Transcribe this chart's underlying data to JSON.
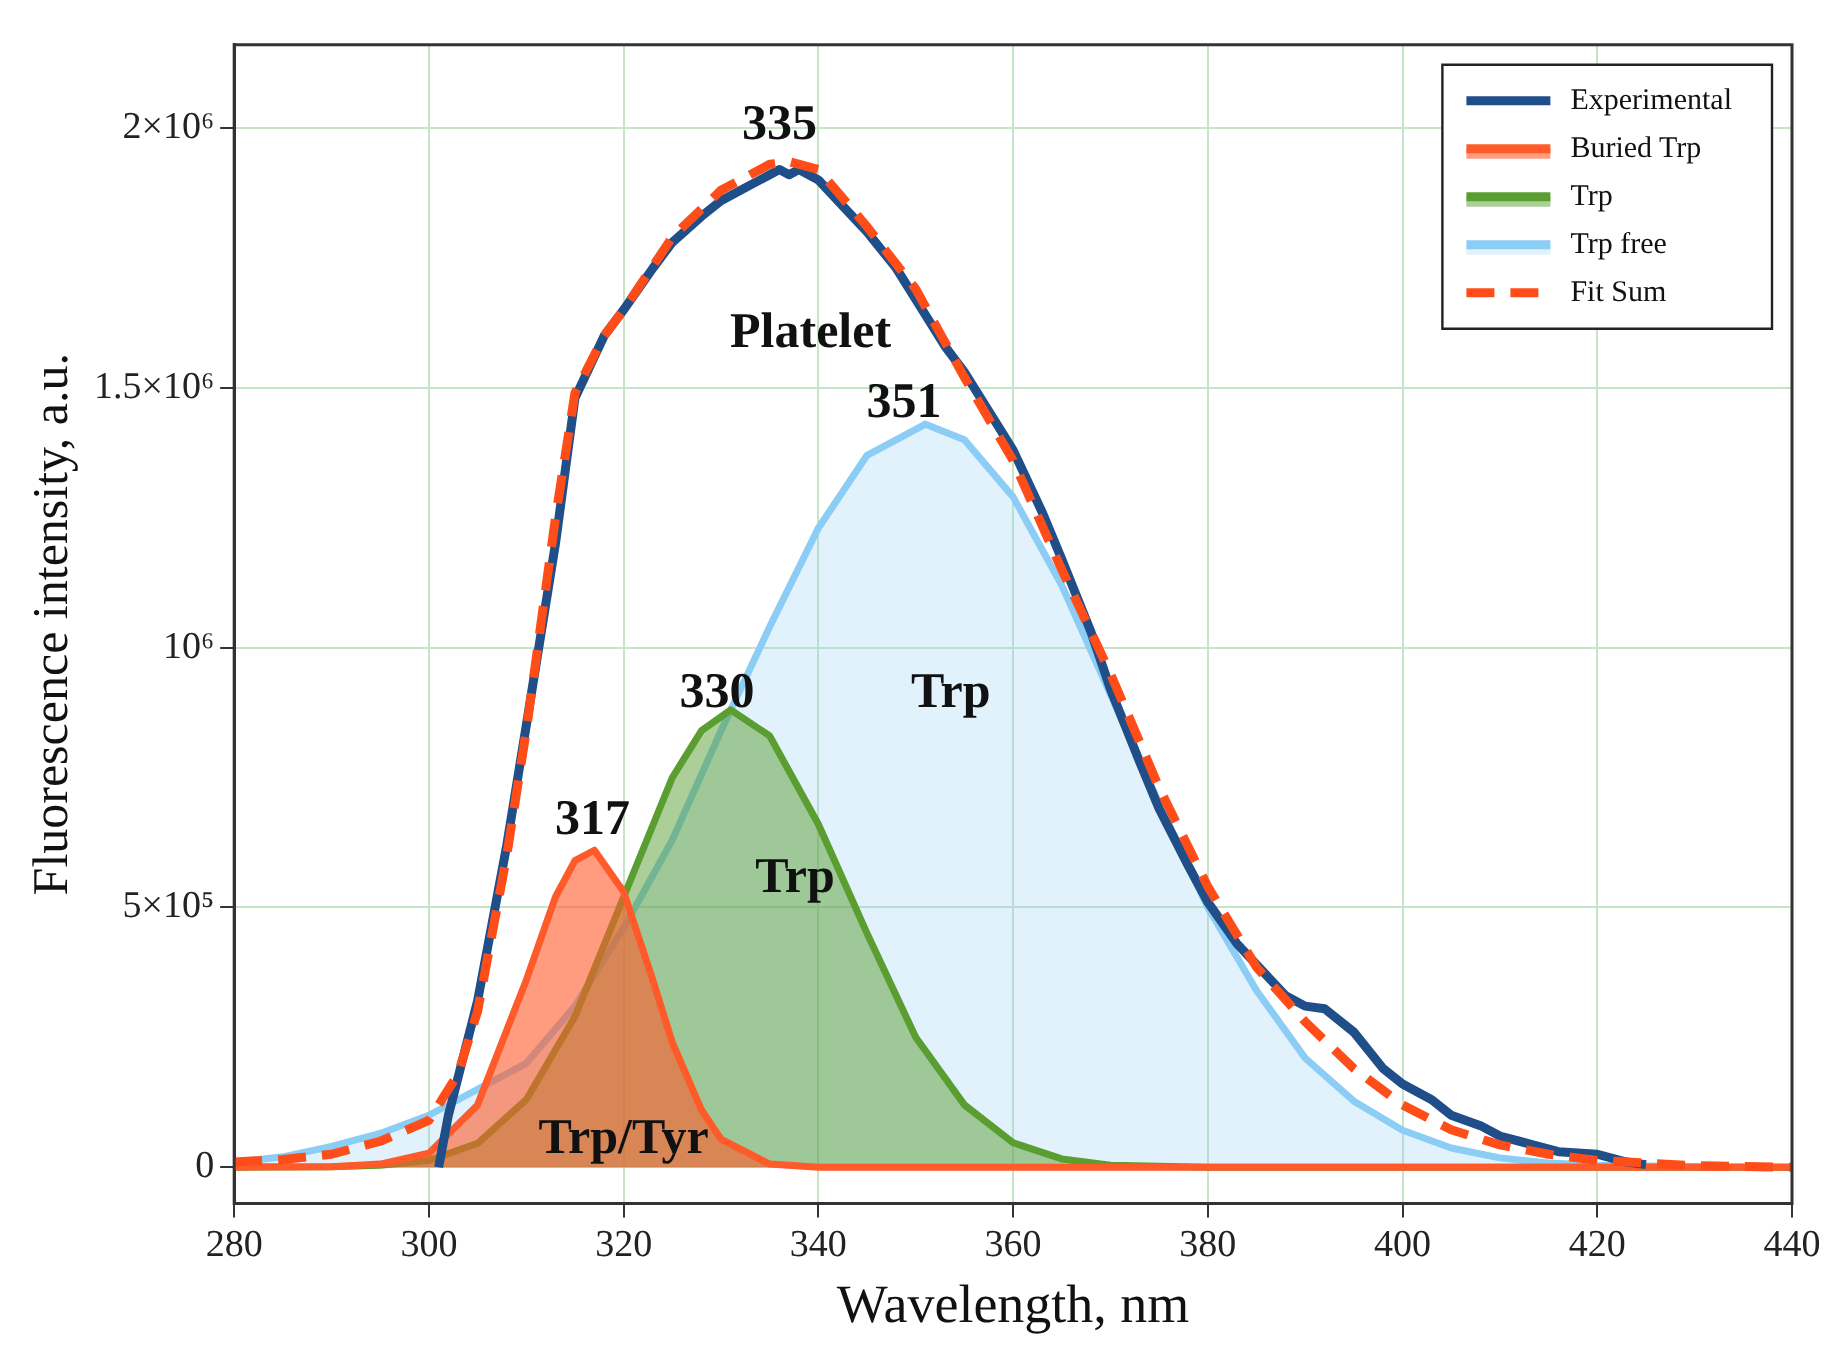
{
  "chart_data": {
    "type": "line",
    "xlabel": "Wavelength, nm",
    "ylabel": "Fluorescence intensity, a.u.",
    "xlim": [
      280,
      440
    ],
    "xticks": [
      280,
      300,
      320,
      340,
      360,
      380,
      400,
      420,
      440
    ],
    "ylim": [
      -70000,
      2160000
    ],
    "yticks": [
      0,
      {
        "value": 500000,
        "label": "5×10⁵"
      },
      {
        "value": 1000000,
        "label": "10⁶"
      },
      {
        "value": 1500000,
        "label": "1.5×10⁶"
      },
      {
        "value": 2000000,
        "label": "2×10⁶"
      }
    ],
    "grid": true,
    "legend": "top right",
    "series": [
      {
        "name": "Experimental",
        "color": "#1f4e89",
        "x": [
          301,
          302,
          305,
          308,
          310,
          313,
          315,
          318,
          320,
          323,
          325,
          328,
          330,
          333,
          335,
          336,
          337,
          338,
          340,
          343,
          345,
          348,
          350,
          353,
          355,
          358,
          360,
          363,
          365,
          368,
          370,
          373,
          375,
          378,
          380,
          383,
          385,
          388,
          390,
          392,
          395,
          398,
          400,
          403,
          405,
          408,
          410,
          413,
          416,
          420,
          423,
          425
        ],
        "values": [
          0,
          100000,
          320000,
          620000,
          850000,
          1200000,
          1480000,
          1600000,
          1650000,
          1730000,
          1780000,
          1830000,
          1860000,
          1890000,
          1910000,
          1920000,
          1910000,
          1920000,
          1900000,
          1840000,
          1800000,
          1730000,
          1670000,
          1580000,
          1530000,
          1440000,
          1380000,
          1260000,
          1170000,
          1030000,
          920000,
          780000,
          690000,
          580000,
          510000,
          430000,
          390000,
          330000,
          310000,
          305000,
          260000,
          190000,
          160000,
          130000,
          100000,
          80000,
          60000,
          45000,
          30000,
          25000,
          10000,
          5000
        ]
      },
      {
        "name": "Buried Trp",
        "type": "area",
        "color": "#ff5a2a",
        "x": [
          280,
          290,
          295,
          300,
          305,
          310,
          313,
          315,
          317,
          320,
          323,
          325,
          328,
          330,
          335,
          340,
          350,
          440
        ],
        "values": [
          0,
          1000,
          6000,
          27000,
          120000,
          360000,
          520000,
          590000,
          610000,
          530000,
          360000,
          240000,
          110000,
          54000,
          6000,
          0,
          0,
          0
        ]
      },
      {
        "name": "Trp",
        "type": "area",
        "color": "#5a9e32",
        "x": [
          280,
          290,
          295,
          300,
          305,
          310,
          315,
          320,
          325,
          328,
          331,
          335,
          340,
          345,
          350,
          355,
          360,
          365,
          370,
          380,
          440
        ],
        "values": [
          0,
          1000,
          4000,
          13000,
          46000,
          130000,
          290000,
          520000,
          750000,
          840000,
          880000,
          830000,
          660000,
          450000,
          250000,
          120000,
          47000,
          16000,
          4000,
          0,
          0
        ]
      },
      {
        "name": "Trp free",
        "type": "area",
        "color": "#8ccdf5",
        "x": [
          280,
          285,
          290,
          295,
          300,
          305,
          310,
          315,
          320,
          325,
          330,
          335,
          340,
          345,
          351,
          355,
          360,
          365,
          370,
          375,
          380,
          385,
          390,
          395,
          400,
          405,
          410,
          415,
          420,
          430,
          440
        ],
        "values": [
          10000,
          20000,
          40000,
          65000,
          100000,
          150000,
          200000,
          310000,
          460000,
          630000,
          840000,
          1040000,
          1230000,
          1370000,
          1430000,
          1400000,
          1290000,
          1120000,
          910000,
          700000,
          500000,
          340000,
          210000,
          127000,
          71000,
          37000,
          18000,
          8000,
          4000,
          1000,
          0
        ]
      },
      {
        "name": "Fit Sum",
        "line_style": "dashed",
        "color": "#ff4d1a",
        "x": [
          280,
          285,
          290,
          295,
          300,
          303,
          305,
          308,
          310,
          313,
          315,
          318,
          320,
          325,
          330,
          335,
          337,
          340,
          345,
          350,
          355,
          360,
          365,
          370,
          375,
          380,
          385,
          390,
          395,
          400,
          405,
          410,
          415,
          420,
          430,
          440
        ],
        "values": [
          10000,
          15000,
          25000,
          50000,
          90000,
          180000,
          300000,
          600000,
          840000,
          1250000,
          1490000,
          1600000,
          1650000,
          1790000,
          1880000,
          1930000,
          1935000,
          1920000,
          1810000,
          1690000,
          1520000,
          1360000,
          1150000,
          950000,
          730000,
          540000,
          385000,
          280000,
          190000,
          120000,
          72000,
          43000,
          25000,
          13000,
          3000,
          0
        ]
      }
    ],
    "annotations": [
      "335",
      "Platelet",
      "351",
      "Trp",
      "330",
      "317",
      "Trp",
      "Trp/Tyr"
    ]
  }
}
